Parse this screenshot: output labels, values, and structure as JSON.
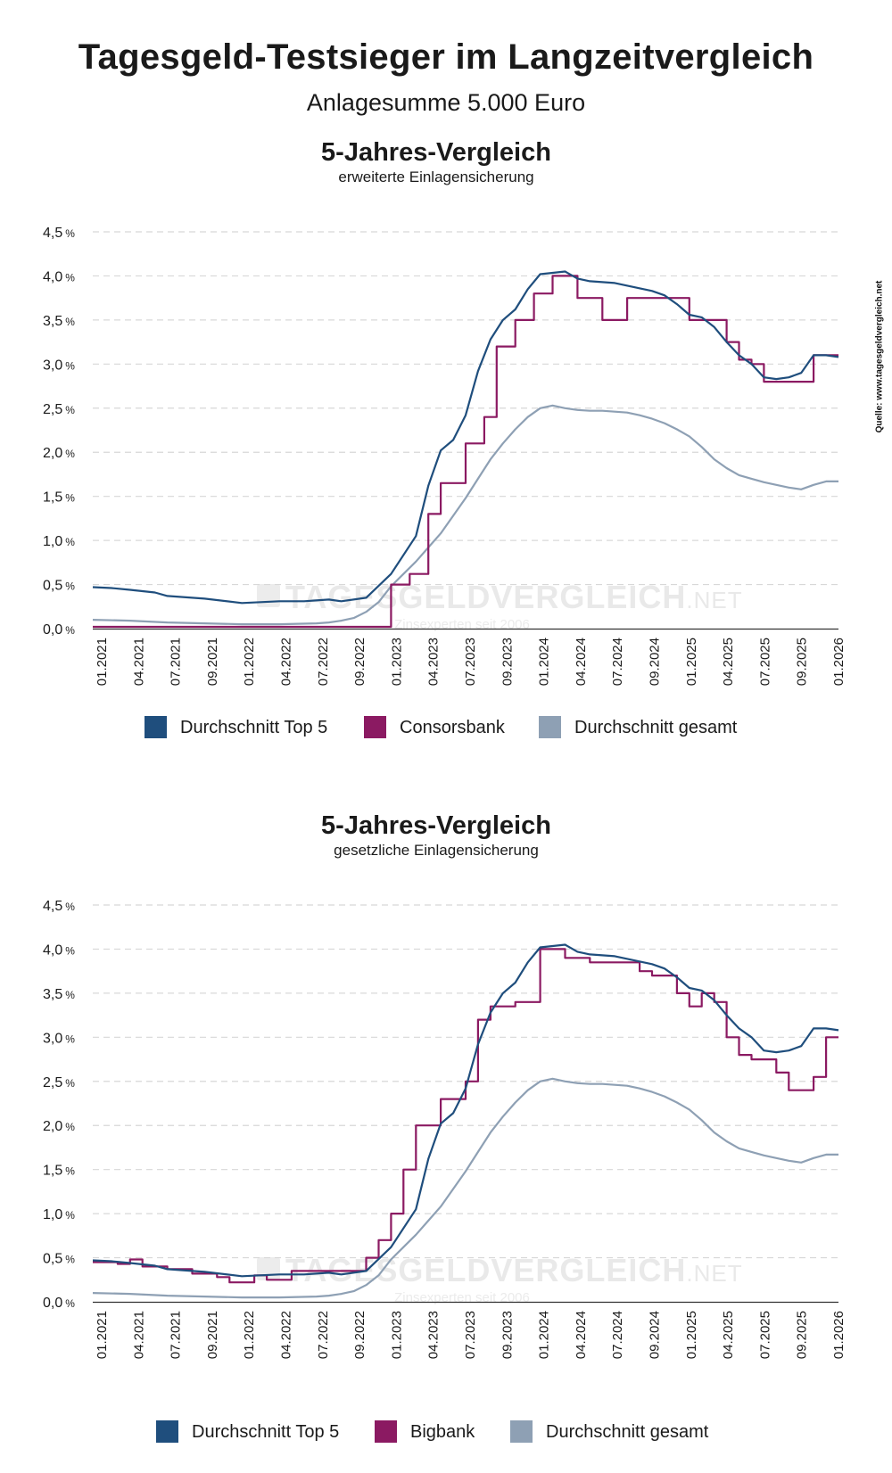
{
  "header": {
    "title": "Tagesgeld-Testsieger im Langzeitvergleich",
    "subtitle": "Anlagesumme 5.000 Euro"
  },
  "source_note": "Quelle: www.tagesgeldvergleich.net",
  "watermark": {
    "brand": "TAGESGELDVERGLEICH",
    "suffix": ".NET",
    "tagline": "Zinsexperten seit 2006"
  },
  "colors": {
    "top5": "#1f4e7d",
    "bank": "#8b1a62",
    "gesamt": "#8ea0b4",
    "grid": "#d8d8d8",
    "axis": "#333333"
  },
  "chart_data": [
    {
      "type": "line",
      "title": "5-Jahres-Vergleich",
      "subtitle": "erweiterte Einlagensicherung",
      "xlabel": "",
      "ylabel": "",
      "xlim": [
        0,
        60
      ],
      "ylim": [
        0,
        4.5
      ],
      "y_ticks": [
        "0,0",
        "0,5",
        "1,0",
        "1,5",
        "2,0",
        "2,5",
        "3,0",
        "3,5",
        "4,0",
        "4,5"
      ],
      "y_unit": "%",
      "x_tick_labels": [
        "01.2021",
        "04.2021",
        "07.2021",
        "09.2021",
        "01.2022",
        "04.2022",
        "07.2022",
        "09.2022",
        "01.2023",
        "04.2023",
        "07.2023",
        "09.2023",
        "01.2024",
        "04.2024",
        "07.2024",
        "09.2024",
        "01.2025",
        "04.2025",
        "07.2025",
        "09.2025",
        "01.2026"
      ],
      "grid": true,
      "legend_position": "bottom",
      "series": [
        {
          "name": "Durchschnitt Top 5",
          "color": "#1f4e7d",
          "step": false,
          "x": [
            0,
            1.5,
            3,
            5,
            6,
            9,
            12,
            15,
            16,
            17,
            19,
            20,
            22,
            24,
            26,
            27,
            28,
            29,
            30,
            31,
            32,
            33,
            34,
            35,
            36,
            38,
            39,
            40,
            41,
            42,
            45,
            46,
            47,
            48,
            49,
            50,
            51,
            52,
            53,
            54,
            55,
            56,
            57,
            58,
            59,
            60
          ],
          "y": [
            0.47,
            0.46,
            0.44,
            0.41,
            0.37,
            0.34,
            0.29,
            0.31,
            0.31,
            0.31,
            0.33,
            0.31,
            0.35,
            0.62,
            1.05,
            1.62,
            2.02,
            2.14,
            2.42,
            2.92,
            3.28,
            3.5,
            3.62,
            3.85,
            4.02,
            4.05,
            3.97,
            3.94,
            3.93,
            3.92,
            3.83,
            3.78,
            3.68,
            3.56,
            3.53,
            3.42,
            3.25,
            3.1,
            3.0,
            2.85,
            2.83,
            2.85,
            2.9,
            3.1,
            3.1,
            3.08
          ]
        },
        {
          "name": "Consorsbank",
          "color": "#8b1a62",
          "step": true,
          "x": [
            0,
            19,
            24,
            25.5,
            27,
            28,
            30,
            30.5,
            31,
            31.5,
            32.5,
            34,
            35.5,
            37,
            39,
            41,
            43,
            48,
            50,
            51,
            52,
            53,
            54,
            57,
            58,
            60
          ],
          "y": [
            0.02,
            0.02,
            0.5,
            0.62,
            1.3,
            1.65,
            2.1,
            2.1,
            2.1,
            2.4,
            3.2,
            3.5,
            3.8,
            4.0,
            3.75,
            3.5,
            3.75,
            3.5,
            3.5,
            3.25,
            3.05,
            3.0,
            2.8,
            2.8,
            3.1,
            3.1
          ]
        },
        {
          "name": "Durchschnitt gesamt",
          "color": "#8ea0b4",
          "step": false,
          "x": [
            0,
            3,
            6,
            9,
            12,
            15,
            18,
            19,
            20,
            21,
            22,
            23,
            24,
            25,
            26,
            27,
            28,
            29,
            30,
            31,
            32,
            33,
            34,
            35,
            36,
            37,
            38,
            39,
            40,
            41,
            42,
            43,
            44,
            45,
            46,
            47,
            48,
            49,
            50,
            51,
            52,
            53,
            54,
            55,
            56,
            57,
            58,
            59,
            60
          ],
          "y": [
            0.1,
            0.09,
            0.07,
            0.06,
            0.05,
            0.05,
            0.06,
            0.07,
            0.09,
            0.12,
            0.19,
            0.3,
            0.48,
            0.62,
            0.76,
            0.92,
            1.08,
            1.28,
            1.48,
            1.7,
            1.92,
            2.1,
            2.26,
            2.4,
            2.5,
            2.53,
            2.5,
            2.48,
            2.47,
            2.47,
            2.46,
            2.45,
            2.42,
            2.38,
            2.33,
            2.26,
            2.18,
            2.06,
            1.92,
            1.82,
            1.74,
            1.7,
            1.66,
            1.63,
            1.6,
            1.58,
            1.63,
            1.67,
            1.67
          ]
        }
      ]
    },
    {
      "type": "line",
      "title": "5-Jahres-Vergleich",
      "subtitle": "gesetzliche Einlagensicherung",
      "xlabel": "",
      "ylabel": "",
      "xlim": [
        0,
        60
      ],
      "ylim": [
        0,
        4.5
      ],
      "y_ticks": [
        "0,0",
        "0,5",
        "1,0",
        "1,5",
        "2,0",
        "2,5",
        "3,0",
        "3,5",
        "4,0",
        "4,5"
      ],
      "y_unit": "%",
      "x_tick_labels": [
        "01.2021",
        "04.2021",
        "07.2021",
        "09.2021",
        "01.2022",
        "04.2022",
        "07.2022",
        "09.2022",
        "01.2023",
        "04.2023",
        "07.2023",
        "09.2023",
        "01.2024",
        "04.2024",
        "07.2024",
        "09.2024",
        "01.2025",
        "04.2025",
        "07.2025",
        "09.2025",
        "01.2026"
      ],
      "grid": true,
      "legend_position": "bottom",
      "series": [
        {
          "name": "Durchschnitt Top 5",
          "color": "#1f4e7d",
          "step": false,
          "x": [
            0,
            1.5,
            3,
            5,
            6,
            9,
            12,
            15,
            16,
            17,
            19,
            20,
            22,
            24,
            26,
            27,
            28,
            29,
            30,
            31,
            32,
            33,
            34,
            35,
            36,
            38,
            39,
            40,
            41,
            42,
            45,
            46,
            47,
            48,
            49,
            50,
            51,
            52,
            53,
            54,
            55,
            56,
            57,
            58,
            59,
            60
          ],
          "y": [
            0.47,
            0.46,
            0.44,
            0.41,
            0.37,
            0.34,
            0.29,
            0.31,
            0.31,
            0.31,
            0.33,
            0.31,
            0.35,
            0.62,
            1.05,
            1.62,
            2.02,
            2.14,
            2.42,
            2.92,
            3.28,
            3.5,
            3.62,
            3.85,
            4.02,
            4.05,
            3.97,
            3.94,
            3.93,
            3.92,
            3.83,
            3.78,
            3.68,
            3.56,
            3.53,
            3.42,
            3.25,
            3.1,
            3.0,
            2.85,
            2.83,
            2.85,
            2.9,
            3.1,
            3.1,
            3.08
          ]
        },
        {
          "name": "Bigbank",
          "color": "#8b1a62",
          "step": true,
          "x": [
            0,
            2,
            3,
            4,
            6,
            8,
            10,
            11,
            13,
            14,
            16,
            17,
            19,
            20,
            22,
            23,
            24,
            25,
            26,
            27,
            28,
            30,
            31,
            32,
            33,
            34,
            36,
            38,
            40,
            42,
            44,
            45,
            47,
            48,
            49,
            50,
            51,
            52,
            53,
            54,
            55,
            56,
            57,
            58,
            59,
            60
          ],
          "y": [
            0.45,
            0.43,
            0.48,
            0.4,
            0.37,
            0.32,
            0.28,
            0.22,
            0.3,
            0.25,
            0.35,
            0.35,
            0.35,
            0.35,
            0.5,
            0.7,
            1.0,
            1.5,
            2.0,
            2.0,
            2.3,
            2.5,
            3.2,
            3.35,
            3.35,
            3.4,
            4.0,
            3.9,
            3.85,
            3.85,
            3.75,
            3.7,
            3.5,
            3.35,
            3.5,
            3.4,
            3.0,
            2.8,
            2.75,
            2.75,
            2.6,
            2.4,
            2.4,
            2.55,
            3.0,
            3.0
          ]
        },
        {
          "name": "Durchschnitt gesamt",
          "color": "#8ea0b4",
          "step": false,
          "x": [
            0,
            3,
            6,
            9,
            12,
            15,
            18,
            19,
            20,
            21,
            22,
            23,
            24,
            25,
            26,
            27,
            28,
            29,
            30,
            31,
            32,
            33,
            34,
            35,
            36,
            37,
            38,
            39,
            40,
            41,
            42,
            43,
            44,
            45,
            46,
            47,
            48,
            49,
            50,
            51,
            52,
            53,
            54,
            55,
            56,
            57,
            58,
            59,
            60
          ],
          "y": [
            0.1,
            0.09,
            0.07,
            0.06,
            0.05,
            0.05,
            0.06,
            0.07,
            0.09,
            0.12,
            0.19,
            0.3,
            0.48,
            0.62,
            0.76,
            0.92,
            1.08,
            1.28,
            1.48,
            1.7,
            1.92,
            2.1,
            2.26,
            2.4,
            2.5,
            2.53,
            2.5,
            2.48,
            2.47,
            2.47,
            2.46,
            2.45,
            2.42,
            2.38,
            2.33,
            2.26,
            2.18,
            2.06,
            1.92,
            1.82,
            1.74,
            1.7,
            1.66,
            1.63,
            1.6,
            1.58,
            1.63,
            1.67,
            1.67
          ]
        }
      ]
    }
  ]
}
